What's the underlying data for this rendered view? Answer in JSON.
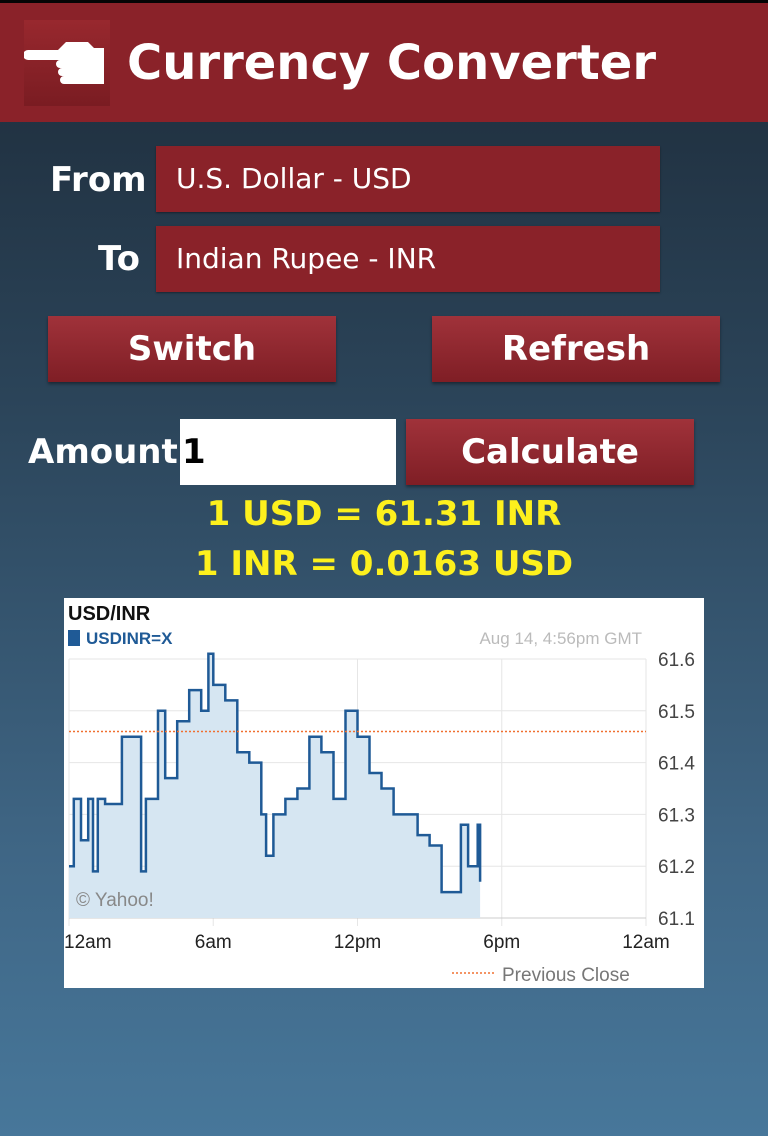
{
  "header": {
    "title": "Currency Converter",
    "icon": "pointing-hand-icon"
  },
  "form": {
    "from_label": "From",
    "from_value": "U.S. Dollar - USD",
    "to_label": "To",
    "to_value": "Indian Rupee - INR",
    "switch_label": "Switch",
    "refresh_label": "Refresh",
    "amount_label": "Amount",
    "amount_value": "1",
    "calculate_label": "Calculate"
  },
  "result": {
    "line1": "1 USD = 61.31 INR",
    "line2": "1 INR = 0.0163 USD"
  },
  "colors": {
    "header": "#8a2229",
    "rate_text": "#fdf01d",
    "series": "#1f5a96",
    "fill": "#d6e6f2",
    "previous_close": "#f07030"
  },
  "chart_data": {
    "type": "area",
    "title": "USD/INR",
    "series_name": "USDINR=X",
    "timestamp": "Aug 14, 4:56pm GMT",
    "credit": "© Yahoo!",
    "x_ticks": [
      "12am",
      "6am",
      "12pm",
      "6pm",
      "12am"
    ],
    "y_ticks": [
      "61.6",
      "61.5",
      "61.4",
      "61.3",
      "61.2",
      "61.1"
    ],
    "ylim": [
      61.1,
      61.6
    ],
    "xlim_hours": [
      0,
      24
    ],
    "grid": true,
    "legend": "Previous Close",
    "legend_position": "bottom-right",
    "previous_close": 61.46,
    "points": [
      [
        0,
        61.2
      ],
      [
        0.2,
        61.33
      ],
      [
        0.5,
        61.25
      ],
      [
        0.8,
        61.33
      ],
      [
        1,
        61.19
      ],
      [
        1.2,
        61.33
      ],
      [
        1.5,
        61.32
      ],
      [
        2,
        61.32
      ],
      [
        2.2,
        61.45
      ],
      [
        2.8,
        61.45
      ],
      [
        3,
        61.19
      ],
      [
        3.2,
        61.33
      ],
      [
        3.5,
        61.33
      ],
      [
        3.7,
        61.5
      ],
      [
        4,
        61.37
      ],
      [
        4.5,
        61.48
      ],
      [
        5,
        61.54
      ],
      [
        5.5,
        61.5
      ],
      [
        5.8,
        61.61
      ],
      [
        6,
        61.55
      ],
      [
        6.5,
        61.52
      ],
      [
        7,
        61.42
      ],
      [
        7.5,
        61.4
      ],
      [
        8,
        61.3
      ],
      [
        8.2,
        61.22
      ],
      [
        8.5,
        61.3
      ],
      [
        9,
        61.33
      ],
      [
        9.5,
        61.35
      ],
      [
        10,
        61.45
      ],
      [
        10.5,
        61.42
      ],
      [
        11,
        61.33
      ],
      [
        11.5,
        61.5
      ],
      [
        12,
        61.45
      ],
      [
        12.5,
        61.38
      ],
      [
        13,
        61.35
      ],
      [
        13.5,
        61.3
      ],
      [
        14,
        61.3
      ],
      [
        14.5,
        61.26
      ],
      [
        15,
        61.24
      ],
      [
        15.5,
        61.15
      ],
      [
        16,
        61.15
      ],
      [
        16.3,
        61.28
      ],
      [
        16.6,
        61.2
      ],
      [
        17,
        61.28
      ],
      [
        17.1,
        61.17
      ]
    ]
  }
}
